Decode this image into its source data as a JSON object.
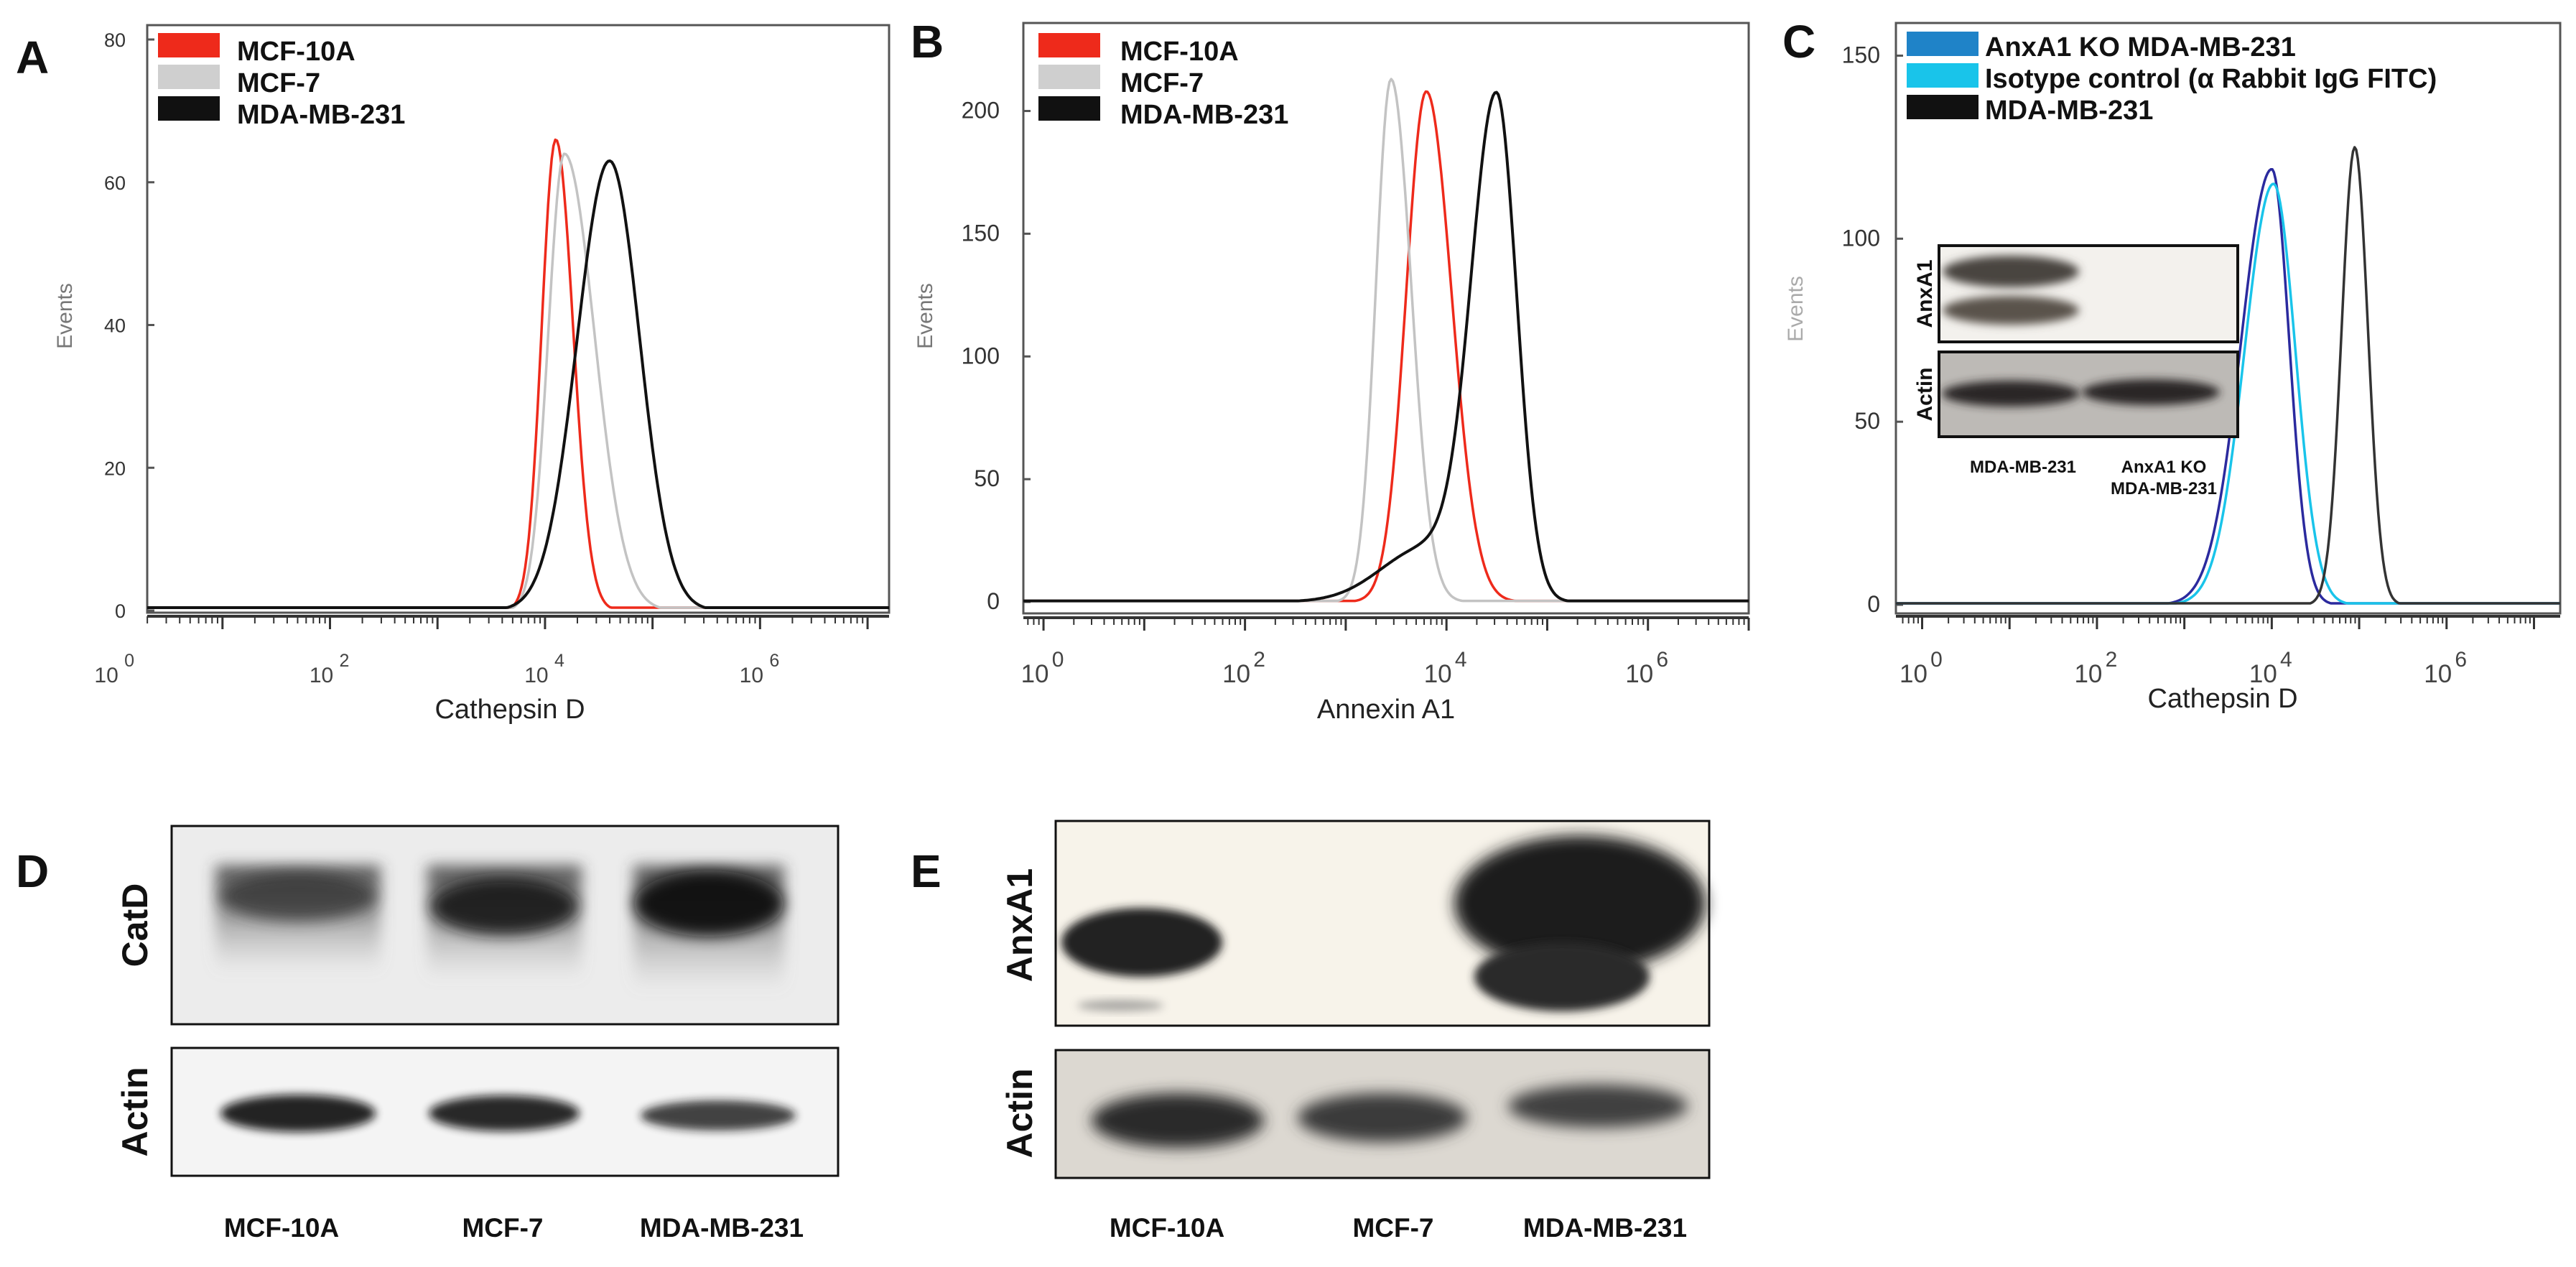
{
  "panels": {
    "A": "A",
    "B": "B",
    "C": "C",
    "D": "D",
    "E": "E"
  },
  "chart_data": [
    {
      "panel": "A",
      "type": "line",
      "title": "",
      "xlabel": "Cathepsin D",
      "ylabel": "Events",
      "xscale": "log10",
      "xlim": [
        0.3,
        7.2
      ],
      "ylim": [
        0,
        80
      ],
      "ytick_labels": [
        "0",
        "20",
        "40",
        "60",
        "80"
      ],
      "ytick_values": [
        0,
        20,
        40,
        60,
        80
      ],
      "xtick_base": "10",
      "xtick_exponents": [
        "0",
        "2",
        "4",
        "6"
      ],
      "legend_position": "top-left",
      "series": [
        {
          "name": "MCF-10A",
          "color": "#ee2a1b",
          "width": 3.5,
          "mu": 4.1,
          "sigma_left": 0.13,
          "sigma_right": 0.16,
          "peak": 66
        },
        {
          "name": "MCF-7",
          "color": "#c3c3c3",
          "width": 3.5,
          "mu": 4.18,
          "sigma_left": 0.15,
          "sigma_right": 0.28,
          "peak": 64
        },
        {
          "name": "MDA-MB-231",
          "color": "#111111",
          "width": 4,
          "mu": 4.6,
          "sigma_left": 0.3,
          "sigma_right": 0.28,
          "peak": 63
        }
      ]
    },
    {
      "panel": "B",
      "type": "line",
      "title": "",
      "xlabel": "Annexin A1",
      "ylabel": "Events",
      "xscale": "log10",
      "xlim": [
        -0.2,
        7.0
      ],
      "ylim": [
        0,
        230
      ],
      "ytick_labels": [
        "0",
        "50",
        "100",
        "150",
        "200"
      ],
      "ytick_values": [
        0,
        50,
        100,
        150,
        200
      ],
      "xtick_base": "10",
      "xtick_exponents": [
        "0",
        "2",
        "4",
        "6"
      ],
      "legend_position": "top-left",
      "series": [
        {
          "name": "MCF-10A",
          "color": "#ee2a1b",
          "width": 3.5,
          "mu": 3.8,
          "sigma_left": 0.2,
          "sigma_right": 0.25,
          "peak": 208
        },
        {
          "name": "MCF-7",
          "color": "#c3c3c3",
          "width": 3.5,
          "mu": 3.45,
          "sigma_left": 0.15,
          "sigma_right": 0.2,
          "peak": 213
        },
        {
          "name": "MDA-MB-231",
          "color": "#111111",
          "width": 4,
          "mu": 4.5,
          "sigma_left": 0.25,
          "sigma_right": 0.2,
          "peak": 201,
          "shoulder": {
            "mu": 3.8,
            "sigma": 0.45,
            "peak": 22
          }
        }
      ]
    },
    {
      "panel": "C",
      "type": "line",
      "title": "",
      "xlabel": "Cathepsin D",
      "ylabel": "Events",
      "xscale": "log10",
      "xlim": [
        -0.3,
        7.3
      ],
      "ylim": [
        0,
        155
      ],
      "ytick_labels": [
        "0",
        "50",
        "100",
        "150"
      ],
      "ytick_values": [
        0,
        50,
        100,
        150
      ],
      "xtick_base": "10",
      "xtick_exponents": [
        "0",
        "2",
        "4",
        "6"
      ],
      "legend_position": "top-left",
      "series": [
        {
          "name": "AnxA1 KO MDA-MB-231",
          "color": "#2b2a9e",
          "width": 3.5,
          "mu": 4.0,
          "sigma_left": 0.35,
          "sigma_right": 0.2,
          "peak": 119
        },
        {
          "name": "Isotype control (α Rabbit IgG FITC)",
          "color": "#19c4ea",
          "width": 3.5,
          "mu": 4.02,
          "sigma_left": 0.33,
          "sigma_right": 0.25,
          "peak": 115
        },
        {
          "name": "MDA-MB-231",
          "color": "#333333",
          "width": 3.5,
          "mu": 4.95,
          "sigma_left": 0.15,
          "sigma_right": 0.15,
          "peak": 125
        }
      ],
      "legend_swatch_colors": [
        "#1f83c8",
        "#19c4ea",
        "#111111"
      ],
      "inset": {
        "rows": [
          "AnxA1",
          "Actin"
        ],
        "lanes": [
          "MDA-MB-231",
          "AnxA1 KO\nMDA-MB-231"
        ],
        "lane_label_1": "MDA-MB-231",
        "lane_label_2a": "AnxA1 KO",
        "lane_label_2b": "MDA-MB-231"
      }
    }
  ],
  "blots": {
    "D": {
      "rows": [
        "CatD",
        "Actin"
      ],
      "lanes": [
        "MCF-10A",
        "MCF-7",
        "MDA-MB-231"
      ]
    },
    "E": {
      "rows": [
        "AnxA1",
        "Actin"
      ],
      "lanes": [
        "MCF-10A",
        "MCF-7",
        "MDA-MB-231"
      ]
    }
  }
}
